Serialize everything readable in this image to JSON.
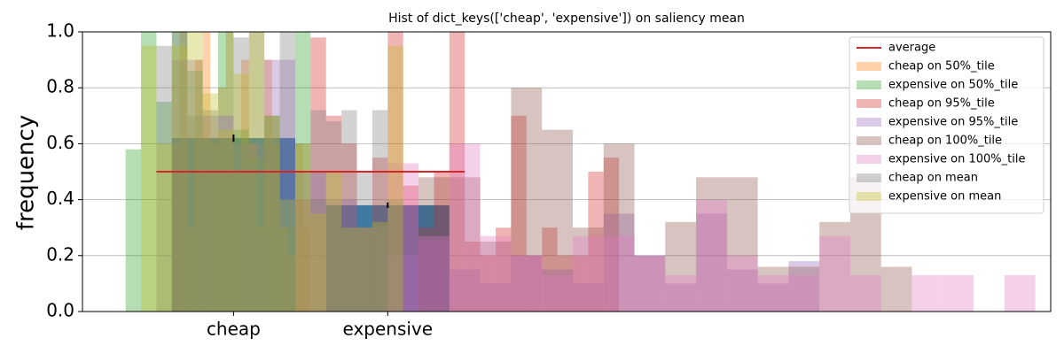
{
  "chart_data": {
    "type": "bar",
    "title": "Hist of dict_keys(['cheap', 'expensive']) on saliency mean",
    "ylabel": "frequency",
    "categories": [
      "cheap",
      "expensive"
    ],
    "values": [
      0.62,
      0.38
    ],
    "errors": [
      0.013,
      0.01
    ],
    "color": "#1f77b4",
    "average": {
      "name": "average",
      "value": 0.5,
      "color": "#d62728"
    },
    "hist_alpha": 0.35,
    "histograms": [
      {
        "name": "cheap on 50%_tile",
        "color": "#ff7f0e",
        "bins": [
          -0.4,
          -0.35,
          -0.3,
          -0.25,
          -0.2,
          -0.15,
          -0.1,
          -0.05,
          0,
          0.05,
          0.1,
          0.15,
          0.2,
          0.25,
          0.3,
          0.35,
          0.4,
          0.45,
          0.5
        ],
        "counts": [
          0.6,
          1.0,
          0.3,
          0.9,
          1.0,
          0.6,
          0.8,
          1.0,
          0.5,
          0.9,
          0.6,
          0.3,
          0.9,
          0.6,
          0.3,
          0.2,
          0.6,
          0.3
        ]
      },
      {
        "name": "expensive on 50%_tile",
        "color": "#2ca02c",
        "bins": [
          -0.7,
          -0.6,
          -0.5,
          -0.4,
          -0.3,
          -0.2,
          -0.1,
          0,
          0.1,
          0.2,
          0.3,
          0.4,
          0.5,
          0.6
        ],
        "counts": [
          0.58,
          1.0,
          0.75,
          1.0,
          0.86,
          0.62,
          1.0,
          0.65,
          0.55,
          0.7,
          0.3,
          1.0,
          0.4
        ]
      },
      {
        "name": "cheap on 95%_tile",
        "color": "#d62728",
        "bins": [
          0.4,
          0.5,
          0.6,
          0.7,
          0.8,
          0.9,
          1.0,
          1.1,
          1.2,
          1.3,
          1.4,
          1.5,
          1.6,
          1.7,
          1.8,
          1.9,
          2.0,
          2.1,
          2.2,
          2.3,
          2.4,
          2.5
        ],
        "counts": [
          0.4,
          0.98,
          0.7,
          0.6,
          0.3,
          0.55,
          1.0,
          0.45,
          0.3,
          0.5,
          1.0,
          0.25,
          0.2,
          0.3,
          0.7,
          0.2,
          0.3,
          0.2,
          0.2,
          0.5,
          0.55
        ]
      },
      {
        "name": "expensive on 95%_tile",
        "color": "#9467bd",
        "bins": [
          -0.4,
          -0.2,
          0,
          0.2,
          0.4,
          0.6,
          0.8,
          1.0,
          1.2,
          1.4,
          1.6,
          1.8,
          2.0,
          2.2,
          2.4,
          2.6,
          2.8,
          3.0,
          3.2,
          3.4,
          3.6,
          3.8
        ],
        "counts": [
          0.9,
          0.7,
          0.6,
          0.9,
          0.5,
          0.4,
          0.3,
          0.2,
          0.25,
          0.15,
          0.1,
          0.2,
          0.15,
          0.1,
          0.35,
          0.2,
          0.1,
          0.35,
          0.15,
          0.1,
          0.18
        ]
      },
      {
        "name": "cheap on 100%_tile",
        "color": "#8c564b",
        "bins": [
          1.2,
          1.4,
          1.6,
          1.8,
          2.0,
          2.2,
          2.4,
          2.6,
          2.8,
          3.0,
          3.2,
          3.4,
          3.6,
          3.8,
          4.0,
          4.2,
          4.4
        ],
        "counts": [
          0.48,
          0.48,
          0.25,
          0.8,
          0.65,
          0.3,
          0.6,
          0.2,
          0.32,
          0.48,
          0.48,
          0.16,
          0.16,
          0.32,
          0.48,
          0.16
        ]
      },
      {
        "name": "expensive on 100%_tile",
        "color": "#e377c2",
        "bins": [
          1.0,
          1.2,
          1.4,
          1.6,
          1.8,
          2.0,
          2.2,
          2.4,
          2.6,
          2.8,
          3.0,
          3.2,
          3.4,
          3.6,
          3.8,
          4.0,
          4.2,
          4.4,
          4.6,
          4.8,
          5.0,
          5.2
        ],
        "counts": [
          0.53,
          0.27,
          0.6,
          0.27,
          0.2,
          0.13,
          0.27,
          0.27,
          0.2,
          0.13,
          0.4,
          0.2,
          0.13,
          0.13,
          0.27,
          0.13,
          0.0,
          0.13,
          0.13,
          0.0,
          0.13
        ]
      },
      {
        "name": "cheap on mean",
        "color": "#7f7f7f",
        "bins": [
          -0.5,
          -0.4,
          -0.3,
          -0.2,
          -0.1,
          0,
          0.1,
          0.2,
          0.3,
          0.4,
          0.5,
          0.6,
          0.7,
          0.8,
          0.9,
          1.0,
          1.1
        ],
        "counts": [
          0.95,
          1.0,
          0.7,
          0.72,
          0.6,
          0.98,
          1.0,
          0.7,
          1.0,
          0.6,
          0.72,
          0.68,
          0.72,
          0.5,
          0.72,
          0.4
        ]
      },
      {
        "name": "expensive on mean",
        "color": "#bcbd22",
        "bins": [
          -0.6,
          -0.5,
          -0.4,
          -0.3,
          -0.2,
          -0.1,
          0,
          0.1,
          0.2,
          0.3,
          0.4,
          0.5,
          0.6,
          0.7,
          0.8,
          0.9,
          1.0,
          1.1
        ],
        "counts": [
          0.95,
          0.6,
          0.95,
          1.0,
          0.78,
          0.65,
          0.85,
          1.0,
          0.7,
          0.4,
          0.6,
          0.35,
          0.5,
          0.3,
          0.3,
          0.32,
          0.95
        ]
      }
    ],
    "xlim": [
      -0.98,
      5.3
    ],
    "ylim": [
      0,
      1
    ],
    "yticks": [
      {
        "value": 0,
        "label": "0.0"
      },
      0.2,
      0.4,
      0.6,
      0.8,
      {
        "value": 1,
        "label": "1.0"
      }
    ],
    "grid": "y",
    "legend": "upper right"
  }
}
